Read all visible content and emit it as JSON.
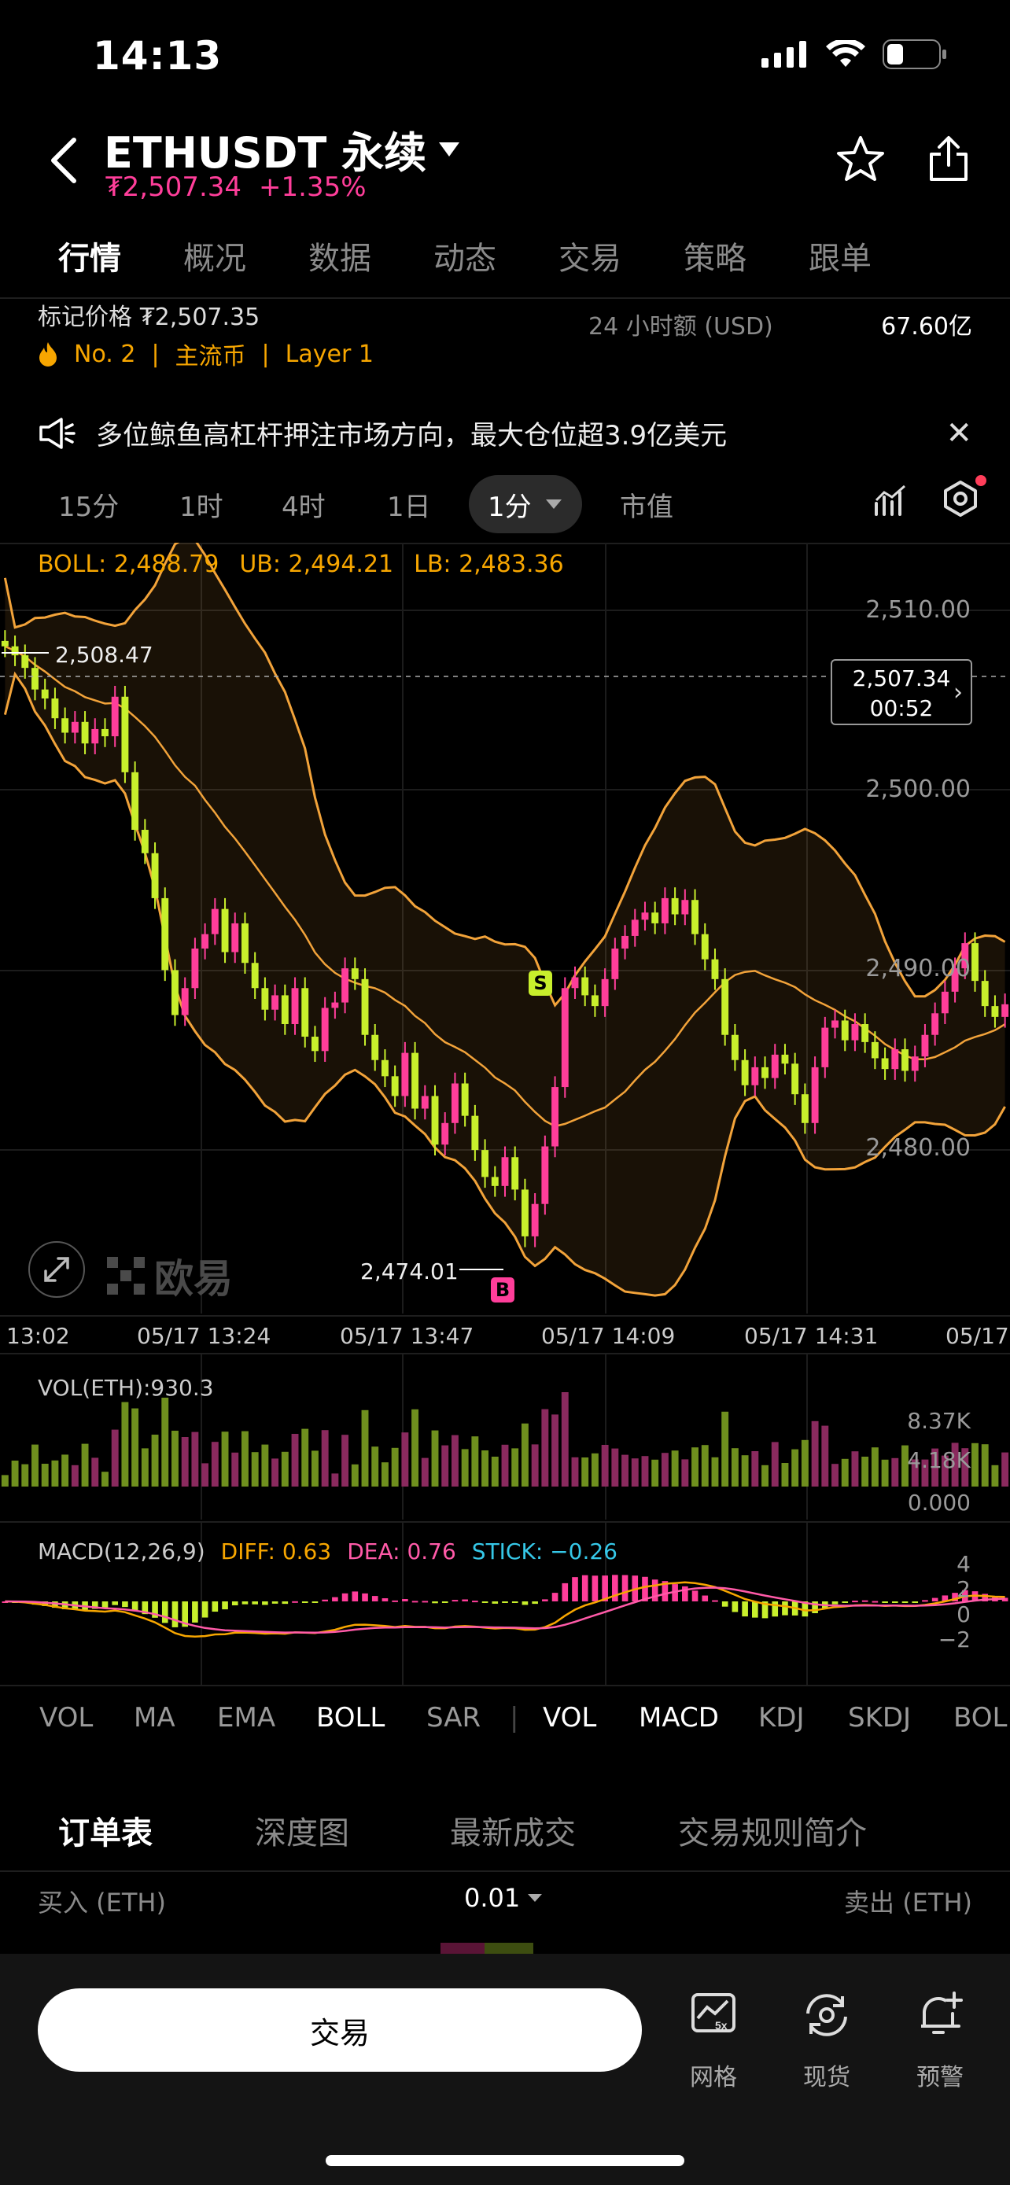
{
  "status_bar": {
    "time": "14:13"
  },
  "header": {
    "symbol": "ETHUSDT 永续",
    "price": "₮2,507.34",
    "change": "+1.35%"
  },
  "tabs": [
    "行情",
    "概况",
    "数据",
    "动态",
    "交易",
    "策略",
    "跟单"
  ],
  "info": {
    "mark_price": "标记价格 ₮2,507.35",
    "rank": "No. 2",
    "tag1": "主流币",
    "tag2": "Layer 1",
    "volume_label": "24 小时额 (USD)",
    "volume_value": "67.60亿"
  },
  "notice": {
    "text": "多位鲸鱼高杠杆押注市场方向，最大仓位超3.9亿美元"
  },
  "intervals": [
    "15分",
    "1时",
    "4时",
    "1日",
    "1分",
    "市值"
  ],
  "selected_interval": "1分",
  "chart": {
    "boll_label": "BOLL: 2,488.79",
    "ub_label": "UB: 2,494.21",
    "lb_label": "LB: 2,483.36",
    "y_ticks": [
      "2,510.00",
      "2,500.00",
      "2,490.00",
      "2,480.00"
    ],
    "high_label": "2,508.47",
    "low_label": "2,474.01",
    "current_price": "2,507.34",
    "countdown": "00:52",
    "sell_marker": "S",
    "buy_marker": "B",
    "watermark": "欧易",
    "x_ticks": [
      "13:02",
      "05/17 13:24",
      "05/17 13:47",
      "05/17 14:09",
      "05/17 14:31",
      "05/17"
    ]
  },
  "vol_panel": {
    "legend": "VOL(ETH):930.3",
    "y_ticks": [
      "8.37K",
      "4.18K",
      "0.000"
    ]
  },
  "macd_panel": {
    "title": "MACD(12,26,9)",
    "diff": "DIFF: 0.63",
    "dea": "DEA: 0.76",
    "stick": "STICK: −0.26",
    "y_ticks": [
      "4",
      "2",
      "0",
      "−2"
    ]
  },
  "indicators_main": [
    "VOL",
    "MA",
    "EMA",
    "BOLL",
    "SAR"
  ],
  "indicators_sub": [
    "VOL",
    "MACD",
    "KDJ",
    "SKDJ",
    "BOL"
  ],
  "active_main": "BOLL",
  "book_tabs": [
    "订单表",
    "深度图",
    "最新成交",
    "交易规则简介"
  ],
  "book_header": {
    "buy": "买入 (ETH)",
    "step": "0.01",
    "sell": "卖出 (ETH)"
  },
  "bottom": {
    "trade": "交易",
    "grid": "网格",
    "spot": "现货",
    "alert": "预警",
    "grid_badge": "5x"
  },
  "colors": {
    "up": "#ff3e9a",
    "down": "#c8ef2c",
    "accent": "#f7a600",
    "band": "#f2a33a"
  }
}
